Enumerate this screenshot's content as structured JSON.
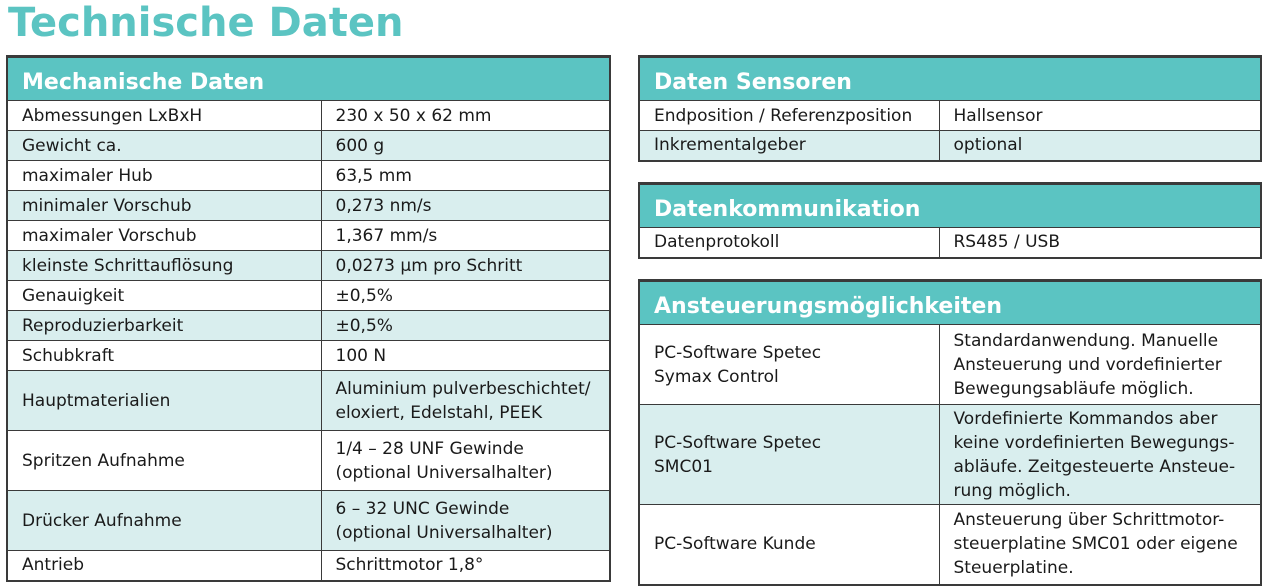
{
  "title": "Technische Daten",
  "mechanical": {
    "header": "Mechanische Daten",
    "rows": [
      [
        "Abmessungen LxBxH",
        "230 x 50 x 62 mm"
      ],
      [
        "Gewicht ca.",
        "600 g"
      ],
      [
        "maximaler Hub",
        "63,5 mm"
      ],
      [
        "minimaler Vorschub",
        "0,273 nm/s"
      ],
      [
        "maximaler Vorschub",
        "1,367 mm/s"
      ],
      [
        "kleinste Schrittauflösung",
        "0,0273 µm pro Schritt"
      ],
      [
        "Genauigkeit",
        "±0,5%"
      ],
      [
        "Reproduzierbarkeit",
        "±0,5%"
      ],
      [
        "Schubkraft",
        "100 N"
      ],
      [
        "Hauptmaterialien",
        "Aluminium pulverbeschichtet/\neloxiert, Edelstahl, PEEK"
      ],
      [
        "Spritzen Aufnahme",
        "1/4 – 28 UNF Gewinde\n(optional Universalhalter)"
      ],
      [
        "Drücker Aufnahme",
        "6 – 32 UNC Gewinde\n(optional Universalhalter)"
      ],
      [
        "Antrieb",
        "Schrittmotor 1,8°"
      ]
    ]
  },
  "sensors": {
    "header": "Daten Sensoren",
    "rows": [
      [
        "Endposition / Referenzposition",
        "Hallsensor"
      ],
      [
        "Inkrementalgeber",
        "optional"
      ]
    ]
  },
  "communication": {
    "header": "Datenkommunikation",
    "rows": [
      [
        "Datenprotokoll",
        "RS485 / USB"
      ]
    ]
  },
  "control": {
    "header": "Ansteuerungsmöglichkeiten",
    "rows": [
      [
        "PC-Software Spetec\nSymax Control",
        "Standardanwendung. Manuelle\nAnsteuerung und vordefinierter\nBewegungsabläufe möglich."
      ],
      [
        "PC-Software Spetec\nSMC01",
        "Vordefinierte Kommandos aber\nkeine vordefinierten Bewegungs-\nabläufe. Zeitgesteuerte Ansteue-\nrung möglich."
      ],
      [
        "PC-Software Kunde",
        "Ansteuerung über Schrittmotor-\nsteuerplatine SMC01 oder eigene\nSteuerplatine."
      ]
    ]
  }
}
